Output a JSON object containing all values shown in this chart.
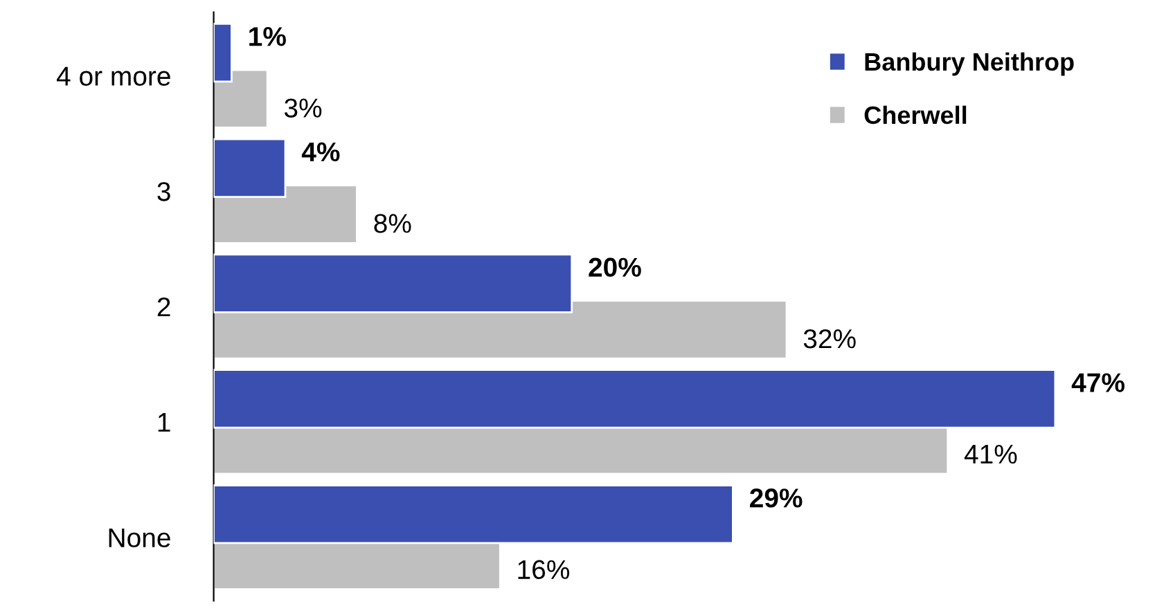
{
  "chart_data": {
    "type": "bar",
    "orientation": "horizontal",
    "categories": [
      "4 or more",
      "3",
      "2",
      "1",
      "None"
    ],
    "series": [
      {
        "name": "Banbury Neithrop",
        "color": "#3a4fb0",
        "values": [
          1,
          4,
          20,
          47,
          29
        ],
        "value_labels": [
          "1%",
          "4%",
          "20%",
          "47%",
          "29%"
        ]
      },
      {
        "name": "Cherwell",
        "color": "#bfbfbf",
        "values": [
          3,
          8,
          32,
          41,
          16
        ],
        "value_labels": [
          "3%",
          "8%",
          "32%",
          "41%",
          "16%"
        ]
      }
    ],
    "legend": "top right",
    "tick_labels": "y"
  }
}
